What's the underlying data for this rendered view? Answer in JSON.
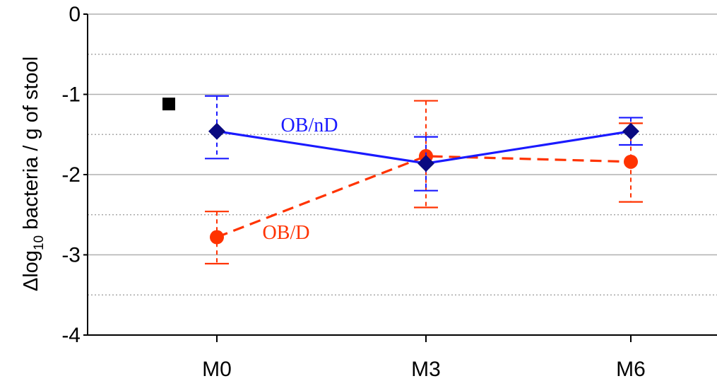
{
  "chart_data": {
    "type": "line",
    "categories": [
      "M0",
      "M3",
      "M6"
    ],
    "ylim": [
      -4,
      0
    ],
    "yticks": [
      0,
      -1,
      -2,
      -3,
      -4
    ],
    "grid": "horizontal dotted lines every 0.5",
    "ylabel": {
      "prefix": "Δlog",
      "subscript": "10",
      "suffix": "  bacteria / g of stool"
    },
    "series": [
      {
        "name": "OB/nD",
        "color": "#1a1aff",
        "marker": "diamond",
        "marker_color": "#0a0a80",
        "line_style": "solid",
        "values": [
          -1.46,
          -1.86,
          -1.46
        ],
        "error_low": [
          -1.8,
          -2.2,
          -1.63
        ],
        "error_high": [
          -1.02,
          -1.53,
          -1.29
        ]
      },
      {
        "name": "OB/D",
        "color": "#ff3300",
        "marker": "circle",
        "marker_color": "#ff3300",
        "line_style": "dashed",
        "values": [
          -2.78,
          -1.77,
          -1.84
        ],
        "error_low": [
          -3.11,
          -2.41,
          -2.34
        ],
        "error_high": [
          -2.46,
          -1.08,
          -1.36
        ]
      }
    ],
    "annotation": {
      "marker": "black-square",
      "x_position": "left of M0",
      "y": -1.12
    }
  }
}
